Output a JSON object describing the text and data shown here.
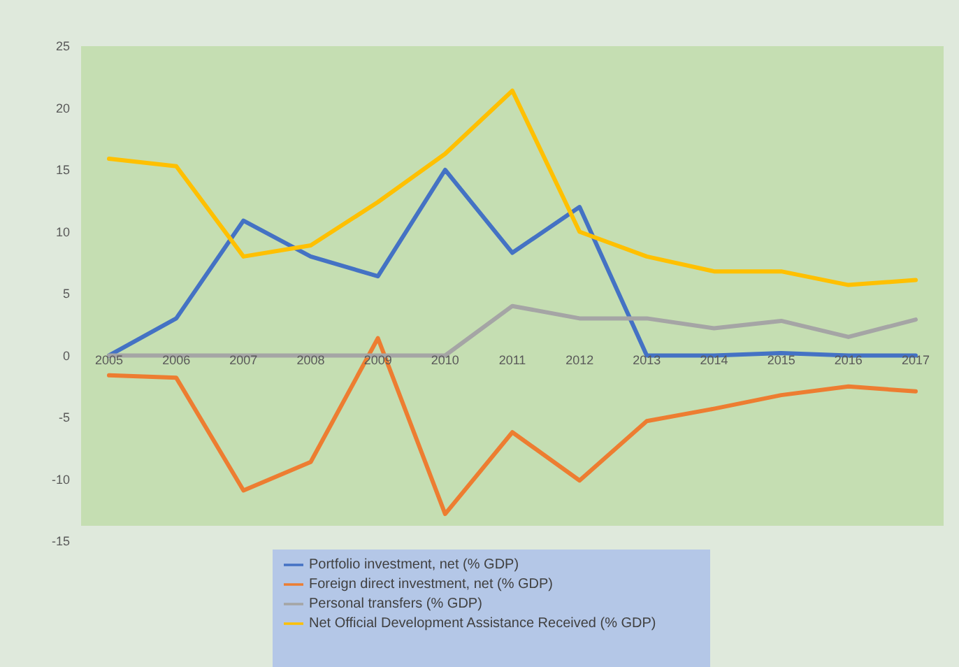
{
  "chart_data": {
    "type": "line",
    "categories": [
      "2005",
      "2006",
      "2007",
      "2008",
      "2009",
      "2010",
      "2011",
      "2012",
      "2013",
      "2014",
      "2015",
      "2016",
      "2017"
    ],
    "series": [
      {
        "name": "Portfolio investment, net (% GDP)",
        "color": "#4472c4",
        "values": [
          0,
          3.0,
          10.9,
          8,
          6.4,
          15,
          8.3,
          12,
          0,
          0,
          0.2,
          0,
          0
        ]
      },
      {
        "name": "Foreign direct investment, net (% GDP)",
        "color": "#ed7d31",
        "values": [
          -1.6,
          -1.8,
          -10.9,
          -8.6,
          1.4,
          -12.8,
          -6.2,
          -10.1,
          -5.3,
          -4.3,
          -3.2,
          -2.5,
          -2.9
        ]
      },
      {
        "name": "Personal transfers (% GDP)",
        "color": "#a5a5a5",
        "values": [
          0,
          0,
          0,
          0,
          0,
          0,
          4.0,
          3.0,
          3.0,
          2.2,
          2.8,
          1.5,
          2.9
        ]
      },
      {
        "name": "Net Official Development Assistance Received (% GDP)",
        "color": "#ffc000",
        "values": [
          15.9,
          15.3,
          8.0,
          8.9,
          12.4,
          16.3,
          21.4,
          10.0,
          8.0,
          6.8,
          6.8,
          5.7,
          6.1
        ]
      }
    ],
    "ylim": [
      -15,
      25
    ],
    "yticks": [
      -15,
      -10,
      -5,
      0,
      5,
      10,
      15,
      20,
      25
    ],
    "legend": "bottom",
    "marker": "none",
    "line_style": "solid"
  }
}
